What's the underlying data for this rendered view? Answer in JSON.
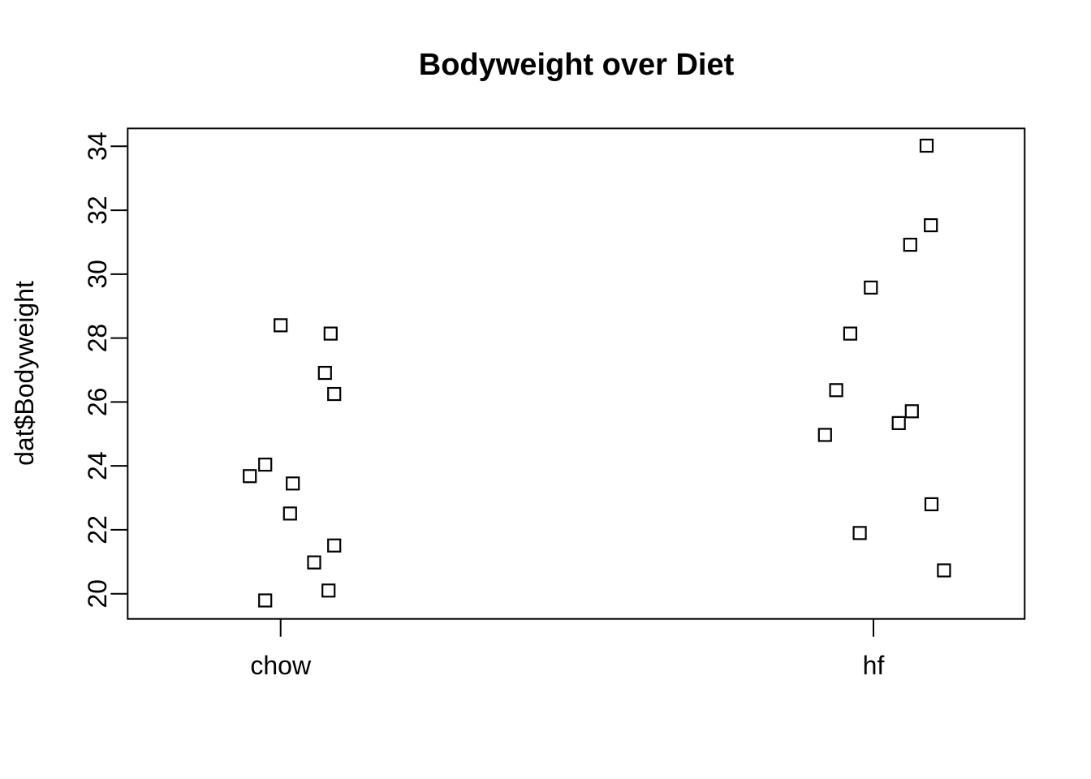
{
  "chart_data": {
    "type": "scatter",
    "subtype": "stripchart-jitter",
    "title": "Bodyweight over Diet",
    "xlabel": "",
    "ylabel": "dat$Bodyweight",
    "x_categories": [
      "chow",
      "hf"
    ],
    "y_ticks": [
      20,
      22,
      24,
      26,
      28,
      30,
      32,
      34
    ],
    "ylim": [
      19.2,
      34.6
    ],
    "grid": false,
    "legend": false,
    "point_symbol": "open-square",
    "colors": {
      "points": "#000000",
      "axis": "#000000",
      "text": "#000000",
      "background": "#ffffff"
    },
    "series": [
      {
        "name": "chow",
        "points": [
          {
            "y": 28.4,
            "dx": 0.0
          },
          {
            "y": 28.14,
            "dx": 61.6
          },
          {
            "y": 26.91,
            "dx": 54.6
          },
          {
            "y": 26.25,
            "dx": 66.0
          },
          {
            "y": 24.04,
            "dx": -19.0
          },
          {
            "y": 23.68,
            "dx": -38.0
          },
          {
            "y": 23.45,
            "dx": 15.0
          },
          {
            "y": 22.51,
            "dx": 11.6
          },
          {
            "y": 21.51,
            "dx": 66.0
          },
          {
            "y": 20.98,
            "dx": 41.3
          },
          {
            "y": 20.1,
            "dx": 59.0
          },
          {
            "y": 19.79,
            "dx": -19.0
          }
        ]
      },
      {
        "name": "hf",
        "points": [
          {
            "y": 34.02,
            "dx": 65.5
          },
          {
            "y": 31.53,
            "dx": 70.7
          },
          {
            "y": 30.92,
            "dx": 45.3
          },
          {
            "y": 29.58,
            "dx": -3.2
          },
          {
            "y": 28.14,
            "dx": -28.6
          },
          {
            "y": 26.37,
            "dx": -45.9
          },
          {
            "y": 25.71,
            "dx": 47.3
          },
          {
            "y": 25.34,
            "dx": 31.2
          },
          {
            "y": 24.97,
            "dx": -59.7
          },
          {
            "y": 22.8,
            "dx": 71.5
          },
          {
            "y": 21.9,
            "dx": -16.9
          },
          {
            "y": 20.73,
            "dx": 86.9
          }
        ]
      }
    ]
  }
}
